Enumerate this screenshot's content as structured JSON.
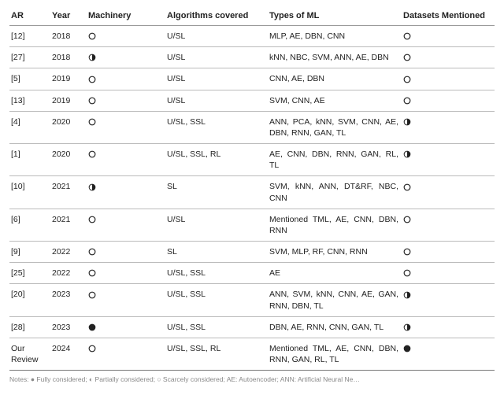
{
  "table": {
    "headers": {
      "ar": "AR",
      "year": "Year",
      "machinery": "Machinery",
      "algorithms": "Algorithms covered",
      "types": "Types of ML",
      "datasets": "Datasets Mentioned"
    },
    "harvey_colors": {
      "stroke": "#222222",
      "fill": "#222222",
      "bg": "#ffffff"
    },
    "rows": [
      {
        "ar": "[12]",
        "year": "2018",
        "machinery": "empty",
        "algorithms": "U/SL",
        "types": "MLP, AE, DBN, CNN",
        "datasets": "empty"
      },
      {
        "ar": "[27]",
        "year": "2018",
        "machinery": "half",
        "algorithms": "U/SL",
        "types": "kNN, NBC, SVM, ANN, AE, DBN",
        "datasets": "empty"
      },
      {
        "ar": "[5]",
        "year": "2019",
        "machinery": "empty",
        "algorithms": "U/SL",
        "types": "CNN, AE, DBN",
        "datasets": "empty"
      },
      {
        "ar": "[13]",
        "year": "2019",
        "machinery": "empty",
        "algorithms": "U/SL",
        "types": "SVM, CNN, AE",
        "datasets": "empty"
      },
      {
        "ar": "[4]",
        "year": "2020",
        "machinery": "empty",
        "algorithms": "U/SL, SSL",
        "types": "ANN, PCA, kNN, SVM, CNN, AE, DBN, RNN, GAN, TL",
        "datasets": "half"
      },
      {
        "ar": "[1]",
        "year": "2020",
        "machinery": "empty",
        "algorithms": "U/SL, SSL, RL",
        "types": "AE, CNN, DBN, RNN, GAN, RL, TL",
        "datasets": "half"
      },
      {
        "ar": "[10]",
        "year": "2021",
        "machinery": "half",
        "algorithms": "SL",
        "types": "SVM, kNN, ANN, DT&RF, NBC, CNN",
        "datasets": "empty"
      },
      {
        "ar": "[6]",
        "year": "2021",
        "machinery": "empty",
        "algorithms": "U/SL",
        "types": "Mentioned TML, AE, CNN, DBN, RNN",
        "datasets": "empty"
      },
      {
        "ar": "[9]",
        "year": "2022",
        "machinery": "empty",
        "algorithms": "SL",
        "types": "SVM, MLP, RF, CNN, RNN",
        "datasets": "empty"
      },
      {
        "ar": "[25]",
        "year": "2022",
        "machinery": "empty",
        "algorithms": "U/SL, SSL",
        "types": "AE",
        "datasets": "empty"
      },
      {
        "ar": "[20]",
        "year": "2023",
        "machinery": "empty",
        "algorithms": "U/SL, SSL",
        "types": "ANN, SVM, kNN, CNN, AE, GAN, RNN, DBN, TL",
        "datasets": "half"
      },
      {
        "ar": "[28]",
        "year": "2023",
        "machinery": "full",
        "algorithms": "U/SL, SSL",
        "types": "DBN, AE, RNN, CNN, GAN, TL",
        "datasets": "half"
      },
      {
        "ar": "Our Review",
        "year": "2024",
        "machinery": "empty",
        "algorithms": "U/SL, SSL, RL",
        "types": "Mentioned TML, AE, CNN, DBN, RNN, GAN, RL, TL",
        "datasets": "full"
      }
    ]
  },
  "note": "Notes: ● Fully considered; ◐ Partially considered; ○ Scarcely considered; AE: Autoencoder; ANN: Artificial Neural Ne…"
}
